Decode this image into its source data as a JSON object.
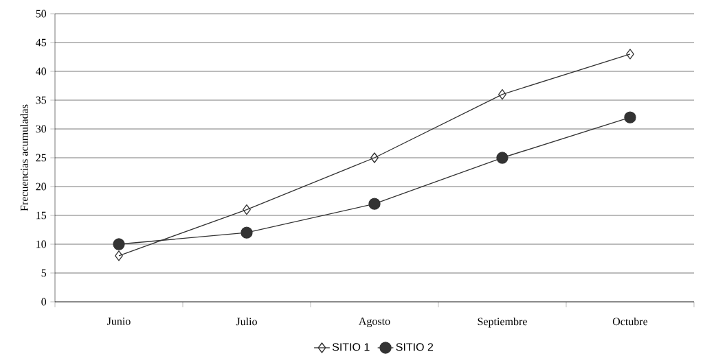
{
  "chart_data": {
    "type": "line",
    "ylabel": "Frecuencias acumuladas",
    "categories": [
      "Junio",
      "Julio",
      "Agosto",
      "Septiembre",
      "Octubre"
    ],
    "series": [
      {
        "name": "SITIO 1",
        "color": "#333333",
        "marker": "diamond",
        "values": [
          8,
          16,
          25,
          36,
          43
        ]
      },
      {
        "name": "SITIO 2",
        "color": "#333333",
        "marker": "circle",
        "values": [
          10,
          12,
          17,
          25,
          32
        ]
      }
    ],
    "ylim": [
      0,
      50
    ],
    "yticks": [
      0,
      5,
      10,
      15,
      20,
      25,
      30,
      35,
      40,
      45,
      50
    ],
    "grid": "y",
    "legend": "bottom",
    "line_style": "solid"
  }
}
